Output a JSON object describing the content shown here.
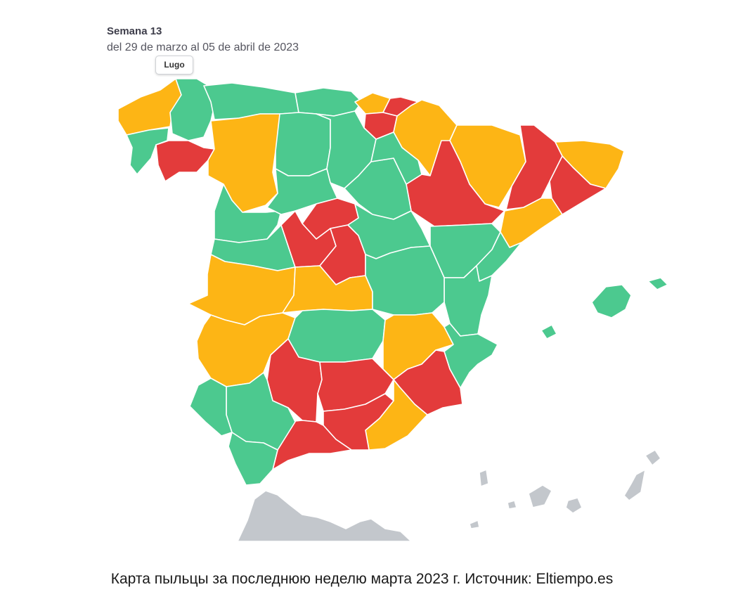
{
  "header": {
    "week_title": "Semana 13",
    "week_range": "del 29 de marzo al 05 de abril de 2023"
  },
  "tooltip": {
    "label": "Lugo"
  },
  "legend_colors": {
    "low": "#4cc98f",
    "moderate": "#fdb515",
    "high": "#e33b3b",
    "no_data": "#c3c7cc"
  },
  "caption": "Карта пыльцы за последнюю неделю марта 2023 г. Источник: Eltiempo.es"
}
